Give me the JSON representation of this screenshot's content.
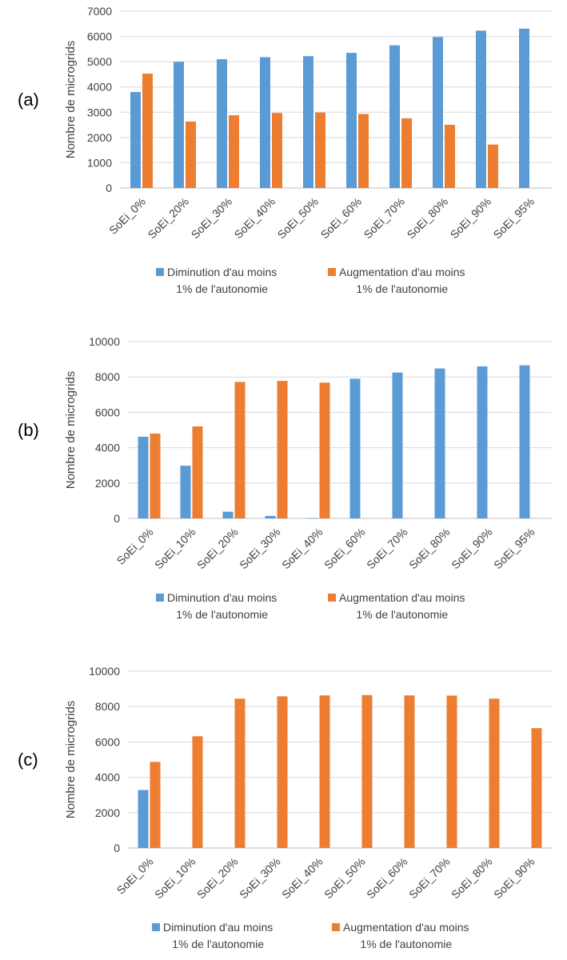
{
  "colors": {
    "decrease": "#5B9BD5",
    "increase": "#ED7D31",
    "grid": "#D9D9D9",
    "axis_text": "#404040"
  },
  "legend": {
    "decrease": {
      "line1": "Diminution d'au moins",
      "line2": "1% de l'autonomie"
    },
    "increase": {
      "line1": "Augmentation d'au moins",
      "line2": "1% de l'autonomie"
    }
  },
  "chart_data": [
    {
      "type": "bar",
      "panel_label": "(a)",
      "ylabel": "Nombre de microgrids",
      "ylim": [
        0,
        7000
      ],
      "yticks": [
        0,
        1000,
        2000,
        3000,
        4000,
        5000,
        6000,
        7000
      ],
      "categories": [
        "SoEi_0%",
        "SoEi_20%",
        "SoEi_30%",
        "SoEi_40%",
        "SoEi_50%",
        "SoEi_60%",
        "SoEi_70%",
        "SoEi_80%",
        "SoEi_90%",
        "SoEi_95%"
      ],
      "series": [
        {
          "name": "Diminution d'au moins 1% de l'autonomie",
          "values": [
            3800,
            5000,
            5100,
            5180,
            5220,
            5350,
            5650,
            5980,
            6230,
            6310
          ]
        },
        {
          "name": "Augmentation d'au moins 1% de l'autonomie",
          "values": [
            4530,
            2630,
            2880,
            2970,
            2990,
            2930,
            2760,
            2500,
            1720,
            0
          ]
        }
      ],
      "grid": true,
      "legend_position": "bottom"
    },
    {
      "type": "bar",
      "panel_label": "(b)",
      "ylabel": "Nombre de microgrids",
      "ylim": [
        0,
        10000
      ],
      "yticks": [
        0,
        2000,
        4000,
        6000,
        8000,
        10000
      ],
      "categories": [
        "SoEi_0%",
        "SoEi_10%",
        "SoEi_20%",
        "SoEi_30%",
        "SoEi_40%",
        "SoEi_60%",
        "SoEi_70%",
        "SoEi_80%",
        "SoEi_90%",
        "SoEi_95%"
      ],
      "series": [
        {
          "name": "Diminution d'au moins 1% de l'autonomie",
          "values": [
            4620,
            2980,
            380,
            140,
            20,
            7900,
            8250,
            8480,
            8600,
            8660
          ]
        },
        {
          "name": "Augmentation d'au moins 1% de l'autonomie",
          "values": [
            4800,
            5200,
            7720,
            7780,
            7680,
            0,
            0,
            0,
            0,
            0
          ]
        }
      ],
      "grid": true,
      "legend_position": "bottom"
    },
    {
      "type": "bar",
      "panel_label": "(c)",
      "ylabel": "Nombre de microgrids",
      "ylim": [
        0,
        10000
      ],
      "yticks": [
        0,
        2000,
        4000,
        6000,
        8000,
        10000
      ],
      "categories": [
        "SoEi_0%",
        "SoEi_10%",
        "SoEi_20%",
        "SoEi_30%",
        "SoEi_40%",
        "SoEi_50%",
        "SoEi_60%",
        "SoEi_70%",
        "SoEi_80%",
        "SoEi_90%"
      ],
      "series": [
        {
          "name": "Diminution d'au moins 1% de l'autonomie",
          "values": [
            3280,
            0,
            0,
            0,
            0,
            0,
            0,
            0,
            0,
            0
          ]
        },
        {
          "name": "Augmentation d'au moins 1% de l'autonomie",
          "values": [
            4870,
            6320,
            8450,
            8580,
            8630,
            8650,
            8630,
            8620,
            8450,
            6780
          ]
        }
      ],
      "grid": true,
      "legend_position": "bottom"
    }
  ]
}
